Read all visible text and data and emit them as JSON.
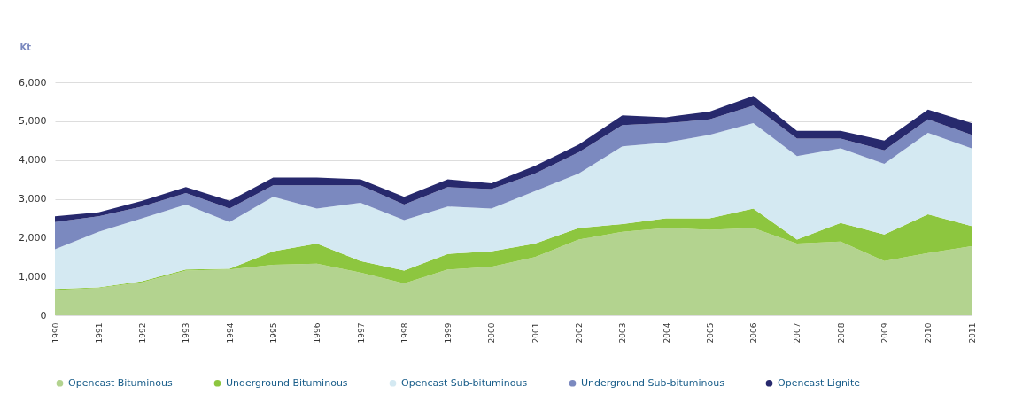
{
  "chart_data": {
    "type": "area",
    "stacked": true,
    "ylabel": "Kt",
    "categories": [
      "1990",
      "1991",
      "1992",
      "1993",
      "1994",
      "1995",
      "1996",
      "1997",
      "1998",
      "1999",
      "2000",
      "2001",
      "2002",
      "2003",
      "2004",
      "2005",
      "2006",
      "2007",
      "2008",
      "2009",
      "2010",
      "2011"
    ],
    "series": [
      {
        "name": "Opencast Bituminous",
        "color": "#b3d38f",
        "values": [
          650,
          700,
          850,
          1150,
          1180,
          1300,
          1330,
          1100,
          820,
          1180,
          1250,
          1500,
          1950,
          2150,
          2250,
          2200,
          2250,
          1850,
          1900,
          1400,
          1600,
          1780
        ]
      },
      {
        "name": "Underground Bituminous",
        "color": "#8dc63f",
        "values": [
          30,
          20,
          30,
          30,
          20,
          350,
          520,
          300,
          330,
          400,
          400,
          350,
          300,
          200,
          250,
          300,
          500,
          100,
          480,
          680,
          1000,
          520
        ]
      },
      {
        "name": "Opencast Sub-bituminous",
        "color": "#d4e9f2",
        "values": [
          1020,
          1430,
          1620,
          1670,
          1200,
          1400,
          900,
          1500,
          1300,
          1220,
          1100,
          1350,
          1400,
          2000,
          1950,
          2150,
          2200,
          2150,
          1920,
          1820,
          2100,
          2000
        ]
      },
      {
        "name": "Underground Sub-bituminous",
        "color": "#7b89bf",
        "values": [
          700,
          400,
          300,
          300,
          350,
          300,
          600,
          450,
          400,
          500,
          500,
          450,
          550,
          550,
          500,
          400,
          450,
          450,
          250,
          350,
          350,
          350
        ]
      },
      {
        "name": "Opencast Lignite",
        "color": "#27296d",
        "values": [
          150,
          100,
          150,
          150,
          200,
          200,
          200,
          150,
          200,
          200,
          150,
          200,
          200,
          250,
          150,
          200,
          250,
          200,
          200,
          250,
          250,
          300
        ]
      }
    ],
    "ylim": [
      0,
      6000
    ],
    "yticks": [
      {
        "value": 0,
        "label": "0"
      },
      {
        "value": 1000,
        "label": "1,000"
      },
      {
        "value": 2000,
        "label": "2,000"
      },
      {
        "value": 3000,
        "label": "3,000"
      },
      {
        "value": 4000,
        "label": "4,000"
      },
      {
        "value": 5000,
        "label": "5,000"
      },
      {
        "value": 6000,
        "label": "6,000"
      }
    ],
    "grid": "y",
    "legend": "bottom"
  }
}
